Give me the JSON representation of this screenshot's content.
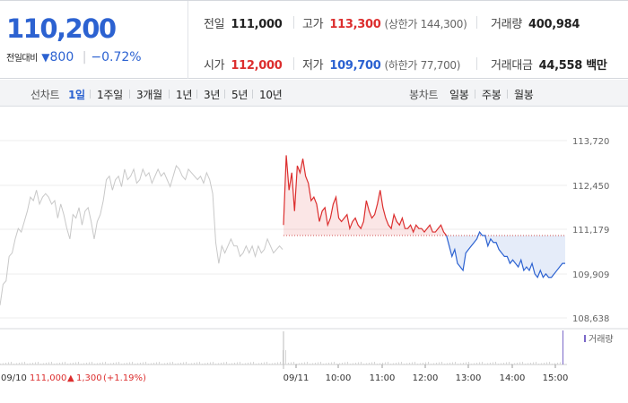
{
  "quote": {
    "price": "110,200",
    "change_label": "전일대비",
    "change_arrow": "▼",
    "change_amount": "800",
    "change_percent": "−0.72%",
    "stats": {
      "prev_close_label": "전일",
      "prev_close": "111,000",
      "open_label": "시가",
      "open": "112,000",
      "high_label": "고가",
      "high": "113,300",
      "upper_limit": "(상한가 144,300)",
      "low_label": "저가",
      "low": "109,700",
      "lower_limit": "(하한가 77,700)",
      "volume_label": "거래량",
      "volume": "400,984",
      "value_label": "거래대금",
      "value": "44,558 백만"
    }
  },
  "toolbar": {
    "line_label": "선차트",
    "periods": [
      "1일",
      "1주일",
      "3개월",
      "1년",
      "3년",
      "5년",
      "10년"
    ],
    "active_period": "1일",
    "candle_label": "봉차트",
    "candle_periods": [
      "일봉",
      "주봉",
      "월봉"
    ]
  },
  "colors": {
    "up": "#dc2e2e",
    "down": "#2c62d1",
    "prev_day": "#c8c8c8"
  },
  "chart_data": {
    "type": "line",
    "y_ticks": [
      "113,720",
      "112,450",
      "111,179",
      "109,909",
      "108,638"
    ],
    "ylim": [
      108638,
      113720
    ],
    "reference_price": 111000,
    "x_ticks": [
      "09/11",
      "10:00",
      "11:00",
      "12:00",
      "13:00",
      "14:00",
      "15:00"
    ],
    "prev_day_summary": {
      "date": "09/10",
      "close": "111,000",
      "change_arrow": "▲",
      "change": "1,300",
      "change_percent": "(+1.19%)"
    },
    "volume_legend": "거래량",
    "series": [
      {
        "values": [
          109000,
          109600,
          109700,
          110400,
          110500,
          110900,
          111200,
          111100,
          111400,
          111700,
          112100,
          112000,
          112300,
          111900,
          112100,
          112200,
          112100,
          111900,
          112000,
          111500,
          111900,
          111600,
          111200,
          110900,
          111600,
          111500,
          111800,
          111300,
          111700,
          111800,
          111400,
          110900,
          111400,
          111600,
          112000,
          112600,
          112700,
          112300,
          112600,
          112700,
          112400,
          112900,
          112600,
          112700,
          112900,
          112500,
          112600,
          112900,
          112700,
          112800,
          112500,
          112700,
          112900,
          112700,
          112800,
          112600,
          112400,
          112700,
          113000,
          112900,
          112700,
          112600,
          112900,
          112800,
          112700,
          112600,
          112700,
          112500,
          112800,
          112600,
          112200,
          110800,
          110200,
          110700,
          110500,
          110700,
          110900,
          110700,
          110700,
          110400,
          110500,
          110700,
          110500,
          110700,
          110400,
          110700,
          110500,
          110600,
          110900,
          110700,
          110500,
          110600,
          110700,
          110600
        ]
      },
      {
        "values": [
          111300,
          113300,
          112300,
          112800,
          111700,
          113000,
          112800,
          113200,
          112700,
          112500,
          112000,
          112100,
          111900,
          111400,
          111700,
          111800,
          111300,
          111500,
          111900,
          112100,
          111500,
          111400,
          111500,
          111600,
          111200,
          111400,
          111500,
          111300,
          111200,
          111400,
          112000,
          111700,
          111500,
          111600,
          111900,
          112300,
          111800,
          111500,
          111300,
          111200,
          111600,
          111400,
          111300,
          111500,
          111200,
          111200,
          111300,
          111100,
          111300,
          111200,
          111200,
          111100,
          111200,
          111300,
          111100,
          111100,
          111200,
          111300,
          111100,
          111000,
          110700,
          110400,
          110600,
          110200,
          110100,
          110000,
          110500,
          110600,
          110700,
          110800,
          110900,
          111100,
          111000,
          111000,
          110700,
          110900,
          110800,
          110800,
          110600,
          110500,
          110400,
          110400,
          110200,
          110300,
          110200,
          110100,
          110300,
          110000,
          110100,
          110000,
          110200,
          109900,
          109800,
          110000,
          109800,
          109900,
          109800,
          109800,
          109900,
          110000,
          110100,
          110200,
          110200
        ]
      }
    ]
  }
}
